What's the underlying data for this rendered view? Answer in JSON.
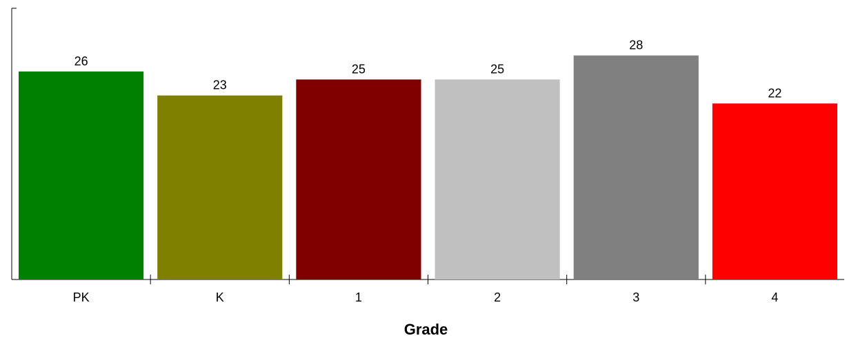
{
  "chart_data": {
    "type": "bar",
    "xlabel": "Grade",
    "categories": [
      "PK",
      "K",
      "1",
      "2",
      "3",
      "4"
    ],
    "values": [
      26,
      23,
      25,
      25,
      28,
      22
    ],
    "colors": [
      "#008000",
      "#808000",
      "#800000",
      "#c0c0c0",
      "#808080",
      "#ff0000"
    ],
    "ylim": [
      0,
      33.9
    ],
    "grid": false,
    "legend": "none",
    "data_labels": true
  }
}
